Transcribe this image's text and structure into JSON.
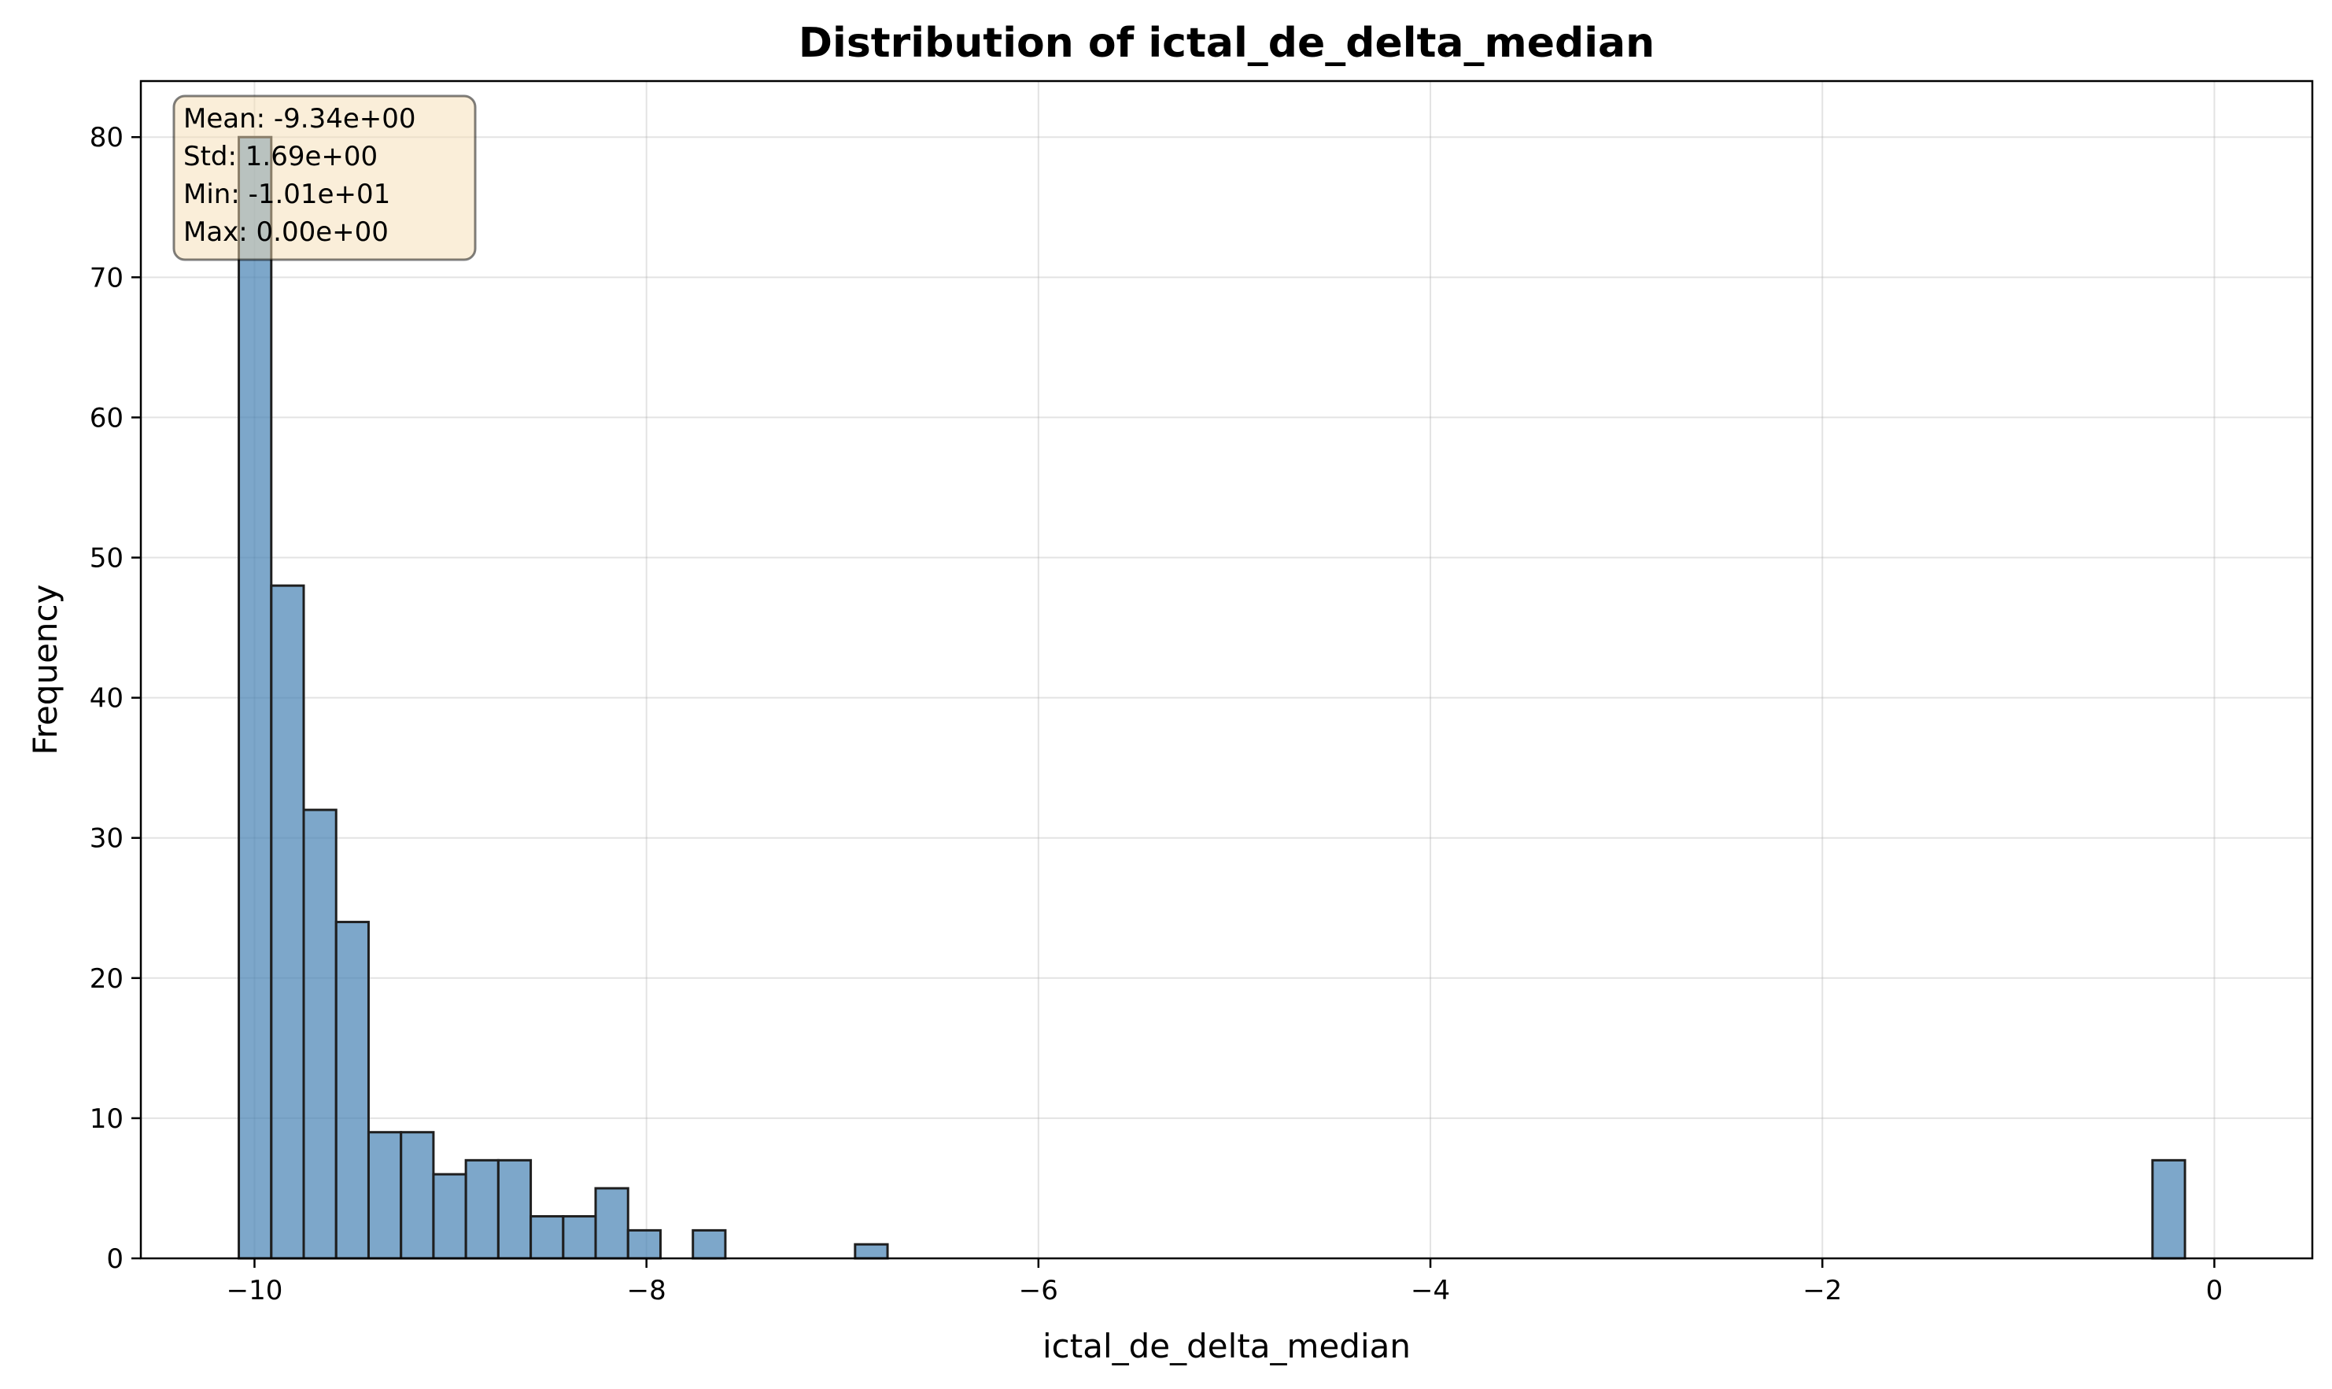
{
  "chart_data": {
    "type": "bar",
    "title": "Distribution of ictal_de_delta_median",
    "xlabel": "ictal_de_delta_median",
    "ylabel": "Frequency",
    "xlim": [
      -10.58,
      0.5
    ],
    "ylim": [
      0,
      84
    ],
    "xticks": [
      -10,
      -8,
      -6,
      -4,
      -2,
      0
    ],
    "xtick_labels": [
      "−10",
      "−8",
      "−6",
      "−4",
      "−2",
      "0"
    ],
    "yticks": [
      0,
      10,
      20,
      30,
      40,
      50,
      60,
      70,
      80
    ],
    "yticks_labels": [
      "0",
      "10",
      "20",
      "30",
      "40",
      "50",
      "60",
      "70",
      "80"
    ],
    "grid": true,
    "bin_start": -10.08,
    "bin_width": 0.1655,
    "counts": [
      80,
      48,
      32,
      24,
      9,
      9,
      6,
      7,
      7,
      3,
      3,
      5,
      2,
      0,
      2,
      0,
      0,
      0,
      0,
      1,
      0,
      0,
      0,
      0,
      0,
      0,
      0,
      0,
      0,
      0,
      0,
      0,
      0,
      0,
      0,
      0,
      0,
      0,
      0,
      0,
      0,
      0,
      0,
      0,
      0,
      0,
      0,
      0,
      0,
      0,
      0,
      0,
      0,
      0,
      0,
      0,
      0,
      0,
      0,
      7
    ],
    "bar_color": "#4682b4",
    "stats_box": {
      "lines": [
        "Mean: -9.34e+00",
        "Std: 1.69e+00",
        "Min: -1.01e+01",
        "Max: 0.00e+00"
      ],
      "facecolor": "#f5deb3",
      "placement": "top-left"
    }
  }
}
